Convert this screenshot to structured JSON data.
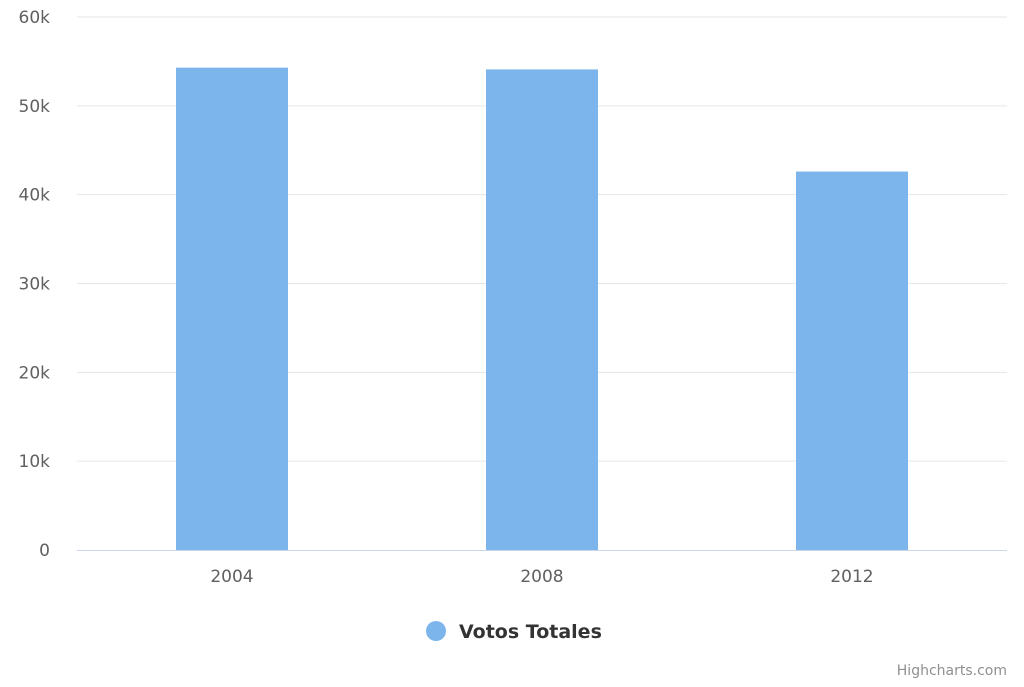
{
  "chart_data": {
    "type": "bar",
    "categories": [
      "2004",
      "2008",
      "2012"
    ],
    "series": [
      {
        "name": "Votos Totales",
        "values": [
          54300,
          54100,
          42600
        ],
        "color": "#7cb5ec"
      }
    ],
    "ylim": [
      0,
      60000
    ],
    "yticks": [
      {
        "value": 0,
        "label": "0"
      },
      {
        "value": 10000,
        "label": "10k"
      },
      {
        "value": 20000,
        "label": "20k"
      },
      {
        "value": 30000,
        "label": "30k"
      },
      {
        "value": 40000,
        "label": "40k"
      },
      {
        "value": 50000,
        "label": "50k"
      },
      {
        "value": 60000,
        "label": "60k"
      }
    ],
    "grid": true,
    "legend_position": "bottom-center",
    "colors": {
      "grid": "#e6e6e6",
      "axis": "#ccd6eb"
    }
  },
  "credits": "Highcharts.com"
}
